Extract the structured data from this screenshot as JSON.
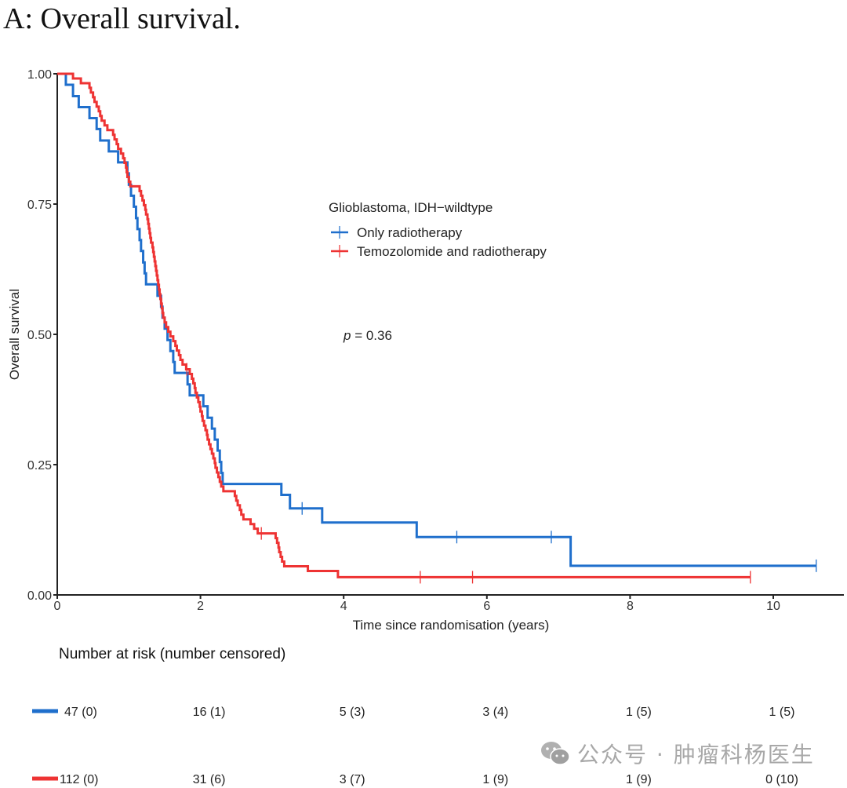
{
  "figure": {
    "panel_title": "A: Overall survival.",
    "watermark_text": "公众号 · 肿瘤科杨医生",
    "watermark_icon": "wechat-icon"
  },
  "chart_data": {
    "type": "line",
    "subtype": "kaplan-meier step",
    "title": "A: Overall survival.",
    "xlabel": "Time since randomisation (years)",
    "ylabel": "Overall survival",
    "xlim": [
      0,
      11
    ],
    "ylim": [
      0,
      1
    ],
    "xticks": [
      0,
      2,
      4,
      6,
      8,
      10
    ],
    "xtick_labels": [
      "0",
      "2",
      "4",
      "6",
      "8",
      "10"
    ],
    "yticks": [
      0,
      0.25,
      0.5,
      0.75,
      1
    ],
    "ytick_labels": [
      "0.00",
      "0.25",
      "0.50",
      "0.75",
      "1.00"
    ],
    "grid": false,
    "legend": {
      "title": "Glioblastoma, IDH−wildtype",
      "placement": "upper-center",
      "entries": [
        "Only radiotherapy",
        "Temozolomide and radiotherapy"
      ]
    },
    "annotation": {
      "prefix": "p",
      "text": " = 0.36"
    },
    "series": [
      {
        "name": "Only radiotherapy",
        "color": "#1f6fcc",
        "steps": [
          [
            0,
            1.0
          ],
          [
            0.12,
            0.979
          ],
          [
            0.22,
            0.957
          ],
          [
            0.3,
            0.936
          ],
          [
            0.45,
            0.915
          ],
          [
            0.55,
            0.894
          ],
          [
            0.6,
            0.872
          ],
          [
            0.72,
            0.851
          ],
          [
            0.85,
            0.83
          ],
          [
            0.98,
            0.809
          ],
          [
            1.0,
            0.787
          ],
          [
            1.03,
            0.766
          ],
          [
            1.07,
            0.745
          ],
          [
            1.1,
            0.723
          ],
          [
            1.12,
            0.702
          ],
          [
            1.15,
            0.681
          ],
          [
            1.17,
            0.66
          ],
          [
            1.2,
            0.638
          ],
          [
            1.22,
            0.617
          ],
          [
            1.24,
            0.596
          ],
          [
            1.4,
            0.574
          ],
          [
            1.45,
            0.553
          ],
          [
            1.47,
            0.532
          ],
          [
            1.5,
            0.511
          ],
          [
            1.54,
            0.489
          ],
          [
            1.58,
            0.468
          ],
          [
            1.62,
            0.447
          ],
          [
            1.64,
            0.426
          ],
          [
            1.82,
            0.404
          ],
          [
            1.85,
            0.383
          ],
          [
            2.04,
            0.362
          ],
          [
            2.1,
            0.34
          ],
          [
            2.16,
            0.319
          ],
          [
            2.2,
            0.298
          ],
          [
            2.24,
            0.277
          ],
          [
            2.27,
            0.255
          ],
          [
            2.29,
            0.234
          ],
          [
            2.31,
            0.213
          ],
          [
            3.13,
            0.192
          ],
          [
            3.25,
            0.166
          ],
          [
            3.7,
            0.139
          ],
          [
            5.02,
            0.111
          ],
          [
            7.17,
            0.056
          ]
        ],
        "end_time": 10.6,
        "censor_times": [
          3.42,
          5.58,
          6.9,
          10.6
        ]
      },
      {
        "name": "Temozolomide and radiotherapy",
        "color": "#ee3333",
        "steps": [
          [
            0,
            1.0
          ],
          [
            0.22,
            0.991
          ],
          [
            0.33,
            0.982
          ],
          [
            0.45,
            0.973
          ],
          [
            0.47,
            0.964
          ],
          [
            0.5,
            0.955
          ],
          [
            0.52,
            0.946
          ],
          [
            0.55,
            0.937
          ],
          [
            0.58,
            0.928
          ],
          [
            0.6,
            0.919
          ],
          [
            0.62,
            0.91
          ],
          [
            0.66,
            0.901
          ],
          [
            0.7,
            0.892
          ],
          [
            0.78,
            0.883
          ],
          [
            0.8,
            0.874
          ],
          [
            0.83,
            0.865
          ],
          [
            0.85,
            0.856
          ],
          [
            0.89,
            0.847
          ],
          [
            0.92,
            0.838
          ],
          [
            0.94,
            0.829
          ],
          [
            0.96,
            0.82
          ],
          [
            0.97,
            0.811
          ],
          [
            0.98,
            0.802
          ],
          [
            1.0,
            0.793
          ],
          [
            1.02,
            0.784
          ],
          [
            1.15,
            0.775
          ],
          [
            1.17,
            0.766
          ],
          [
            1.19,
            0.757
          ],
          [
            1.21,
            0.748
          ],
          [
            1.23,
            0.739
          ],
          [
            1.24,
            0.73
          ],
          [
            1.26,
            0.721
          ],
          [
            1.27,
            0.712
          ],
          [
            1.28,
            0.703
          ],
          [
            1.29,
            0.694
          ],
          [
            1.3,
            0.685
          ],
          [
            1.31,
            0.676
          ],
          [
            1.33,
            0.667
          ],
          [
            1.34,
            0.658
          ],
          [
            1.35,
            0.649
          ],
          [
            1.36,
            0.64
          ],
          [
            1.37,
            0.631
          ],
          [
            1.38,
            0.622
          ],
          [
            1.39,
            0.613
          ],
          [
            1.4,
            0.604
          ],
          [
            1.41,
            0.595
          ],
          [
            1.42,
            0.586
          ],
          [
            1.43,
            0.577
          ],
          [
            1.44,
            0.568
          ],
          [
            1.45,
            0.559
          ],
          [
            1.46,
            0.55
          ],
          [
            1.47,
            0.541
          ],
          [
            1.48,
            0.532
          ],
          [
            1.5,
            0.523
          ],
          [
            1.52,
            0.514
          ],
          [
            1.55,
            0.505
          ],
          [
            1.58,
            0.496
          ],
          [
            1.62,
            0.487
          ],
          [
            1.65,
            0.478
          ],
          [
            1.67,
            0.469
          ],
          [
            1.7,
            0.46
          ],
          [
            1.72,
            0.451
          ],
          [
            1.75,
            0.442
          ],
          [
            1.8,
            0.433
          ],
          [
            1.85,
            0.424
          ],
          [
            1.88,
            0.415
          ],
          [
            1.9,
            0.406
          ],
          [
            1.92,
            0.397
          ],
          [
            1.93,
            0.388
          ],
          [
            1.95,
            0.379
          ],
          [
            1.97,
            0.37
          ],
          [
            1.99,
            0.361
          ],
          [
            2.0,
            0.352
          ],
          [
            2.02,
            0.343
          ],
          [
            2.03,
            0.334
          ],
          [
            2.05,
            0.325
          ],
          [
            2.07,
            0.316
          ],
          [
            2.09,
            0.307
          ],
          [
            2.1,
            0.298
          ],
          [
            2.12,
            0.289
          ],
          [
            2.14,
            0.28
          ],
          [
            2.16,
            0.271
          ],
          [
            2.18,
            0.262
          ],
          [
            2.2,
            0.253
          ],
          [
            2.21,
            0.244
          ],
          [
            2.23,
            0.235
          ],
          [
            2.25,
            0.226
          ],
          [
            2.27,
            0.217
          ],
          [
            2.29,
            0.208
          ],
          [
            2.32,
            0.199
          ],
          [
            2.48,
            0.19
          ],
          [
            2.5,
            0.181
          ],
          [
            2.52,
            0.172
          ],
          [
            2.55,
            0.163
          ],
          [
            2.57,
            0.154
          ],
          [
            2.6,
            0.145
          ],
          [
            2.7,
            0.136
          ],
          [
            2.75,
            0.127
          ],
          [
            2.8,
            0.118
          ],
          [
            3.05,
            0.109
          ],
          [
            3.07,
            0.1
          ],
          [
            3.09,
            0.091
          ],
          [
            3.1,
            0.082
          ],
          [
            3.12,
            0.073
          ],
          [
            3.14,
            0.064
          ],
          [
            3.17,
            0.055
          ],
          [
            3.5,
            0.046
          ],
          [
            3.92,
            0.034
          ]
        ],
        "end_time": 9.68,
        "censor_times": [
          1.81,
          2.85,
          5.07,
          5.8,
          9.68
        ]
      }
    ],
    "risk_table": {
      "title": "Number at risk (number censored)",
      "times": [
        0,
        2,
        4,
        6,
        8,
        10
      ],
      "rows": [
        {
          "name": "Only radiotherapy",
          "color": "#1f6fcc",
          "values": [
            "47 (0)",
            "16 (1)",
            "5 (3)",
            "3 (4)",
            "1 (5)",
            "1 (5)"
          ]
        },
        {
          "name": "Temozolomide and radiotherapy",
          "color": "#ee3333",
          "values": [
            "112 (0)",
            "31 (6)",
            "3 (7)",
            "1 (9)",
            "1 (9)",
            "0 (10)"
          ]
        }
      ]
    }
  }
}
